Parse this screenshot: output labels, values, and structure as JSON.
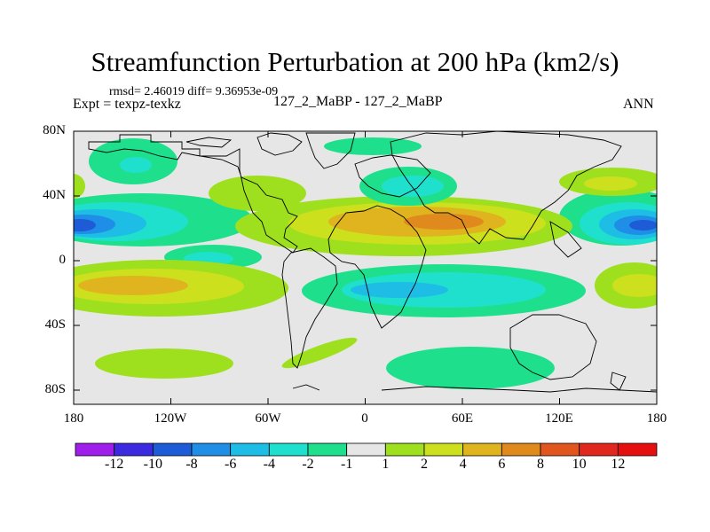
{
  "title": "Streamfunction Perturbation at 200 hPa (km2/s)",
  "stats_line": "rmsd= 2.46019 diff= 9.36953e-09",
  "expt_label": "Expt = texpz-texkz",
  "case_label": "127_2_MaBP - 127_2_MaBP",
  "season_label": "ANN",
  "map": {
    "y_ticks": [
      "80N",
      "40N",
      "0",
      "40S",
      "80S"
    ],
    "x_ticks": [
      "180",
      "120W",
      "60W",
      "0",
      "60E",
      "120E",
      "180"
    ],
    "background_color": "#e6e6e6"
  },
  "colorbar": {
    "labels": [
      "-12",
      "-10",
      "-8",
      "-6",
      "-4",
      "-2",
      "-1",
      "1",
      "2",
      "4",
      "6",
      "8",
      "10",
      "12"
    ],
    "colors": [
      "#9f1eeb",
      "#3c2ae0",
      "#1e5bd6",
      "#1e8ee6",
      "#1ebde6",
      "#1ee0cd",
      "#1ee08c",
      "#e6e6e6",
      "#9ee01e",
      "#cde01e",
      "#e0b41e",
      "#e08a1e",
      "#e0561e",
      "#e0281e",
      "#e60f0f"
    ]
  }
}
